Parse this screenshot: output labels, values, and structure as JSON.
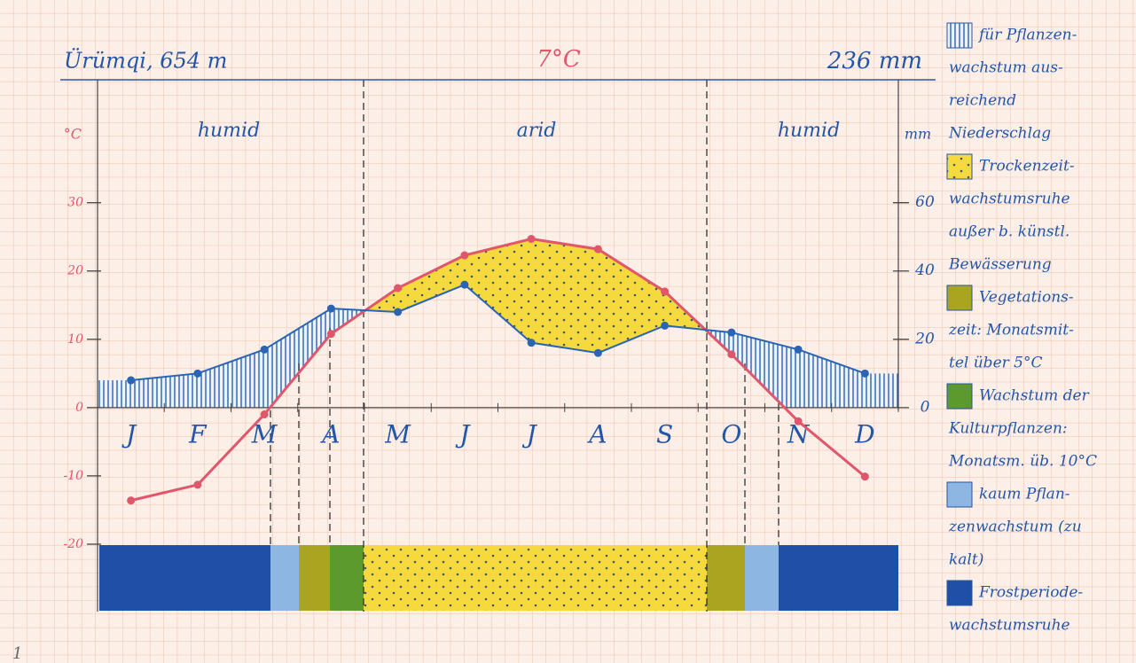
{
  "chart_data": {
    "type": "climate",
    "title": "Ürümqi, 654 m",
    "mean_temperature": "7°C",
    "annual_precipitation": "236 mm",
    "figure_number": "1",
    "ylabel": "°C",
    "y2label": "mm",
    "zones": [
      "humid",
      "arid",
      "humid"
    ],
    "categories": [
      "J",
      "F",
      "M",
      "A",
      "M",
      "J",
      "J",
      "A",
      "S",
      "O",
      "N",
      "D"
    ],
    "temperature": {
      "color": "#e0566a",
      "values": [
        -13.6,
        -11.3,
        -1,
        10.8,
        17.5,
        22.3,
        24.7,
        23.2,
        17,
        7.8,
        -2,
        -10.1
      ]
    },
    "precipitation": {
      "color": "#2a64b4",
      "values": [
        8,
        10,
        17,
        29,
        28,
        36,
        19,
        16,
        24,
        22,
        17,
        10
      ]
    },
    "ylim": [
      -30,
      48
    ],
    "yticks": [
      -20,
      -10,
      0,
      10,
      20,
      30
    ],
    "y2lim": [
      -60,
      96
    ],
    "y2ticks": [
      0,
      20,
      40,
      60
    ],
    "legend": [
      {
        "fill": "hatch",
        "lines": [
          "für Pflanzen-",
          "wachstum aus-",
          "reichend",
          "Niederschlag"
        ]
      },
      {
        "fill": "dots",
        "lines": [
          "Trockenzeit-",
          "wachstumsruhe",
          "außer b. künstl.",
          "Bewässerung"
        ]
      },
      {
        "fill": "#a9a51e",
        "lines": [
          "Vegetations-",
          "zeit: Monatsmit-",
          "tel über 5°C"
        ]
      },
      {
        "fill": "#5c9a2e",
        "lines": [
          "Wachstum der",
          "Kulturpflanzen:",
          "Monatsm. üb. 10°C"
        ]
      },
      {
        "fill": "#8db6e2",
        "lines": [
          "kaum Pflan-",
          "zenwachstum (zu",
          "kalt)"
        ]
      },
      {
        "fill": "#1f4fa6",
        "lines": [
          "Frostperiode-",
          "wachstumsruhe"
        ]
      }
    ]
  }
}
